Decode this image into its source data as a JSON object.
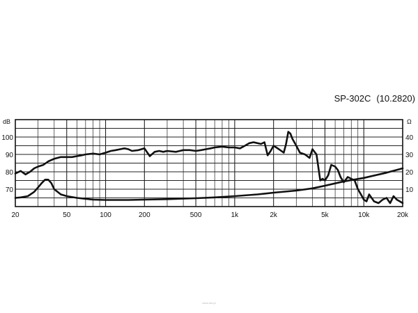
{
  "header": {
    "model": "SP-302C",
    "code": "(10.2820)"
  },
  "watermark": "www.tdd.pl",
  "chart_data": {
    "type": "line",
    "title": "SP-302C (10.2820)",
    "xlabel": "",
    "x_scale": "log",
    "xlim": [
      20,
      20000
    ],
    "x_ticks": [
      20,
      50,
      100,
      200,
      500,
      1000,
      2000,
      5000,
      10000,
      20000
    ],
    "x_tick_labels": [
      "20",
      "50",
      "100",
      "200",
      "500",
      "1k",
      "2k",
      "5k",
      "10k",
      "20k"
    ],
    "y_left": {
      "unit": "dB",
      "ylim": [
        60,
        110
      ],
      "ticks": [
        70,
        80,
        90,
        100
      ],
      "tick_labels": [
        "70",
        "80",
        "90",
        "100"
      ]
    },
    "y_right": {
      "unit": "Ω",
      "ylim": [
        0,
        50
      ],
      "ticks": [
        10,
        20,
        30,
        40
      ],
      "tick_labels": [
        "10",
        "20",
        "30",
        "40"
      ]
    },
    "grid": true,
    "series": [
      {
        "axis": "left",
        "x": [
          20,
          22,
          24,
          26,
          28,
          30,
          33,
          36,
          40,
          45,
          50,
          55,
          60,
          65,
          70,
          80,
          90,
          100,
          110,
          120,
          130,
          140,
          150,
          160,
          180,
          200,
          220,
          240,
          260,
          280,
          300,
          350,
          400,
          450,
          500,
          550,
          600,
          650,
          700,
          800,
          900,
          1000,
          1100,
          1200,
          1300,
          1400,
          1500,
          1600,
          1700,
          1800,
          1900,
          2000,
          2200,
          2400,
          2500,
          2600,
          2700,
          2800,
          3000,
          3200,
          3500,
          3800,
          4000,
          4300,
          4600,
          4800,
          5000,
          5300,
          5600,
          6000,
          6300,
          6600,
          7000,
          7500,
          8000,
          8500,
          9000,
          9500,
          10000,
          10500,
          11000,
          12000,
          13000,
          14000,
          15000,
          16000,
          17000,
          18000,
          19000,
          20000
        ],
        "y": [
          79,
          80.5,
          78.5,
          80,
          82,
          83,
          84,
          86,
          87.5,
          88.5,
          88.5,
          88.5,
          89,
          89.5,
          90,
          90.5,
          90,
          91,
          92,
          92.5,
          93,
          93.5,
          93,
          92,
          92.5,
          93.5,
          89,
          91.5,
          92,
          91.5,
          92,
          91.5,
          92.5,
          92.5,
          92,
          92.5,
          93,
          93.5,
          94,
          94.5,
          94,
          94,
          93.5,
          95,
          96.5,
          97,
          96.5,
          96,
          97,
          89.5,
          92,
          95,
          93,
          91,
          96,
          103,
          102,
          99,
          95,
          91,
          90,
          88,
          93,
          90,
          75,
          76,
          75,
          78,
          84,
          83,
          81,
          77,
          74,
          77,
          76,
          75,
          70,
          67,
          64,
          63,
          67,
          63,
          62,
          64,
          65,
          62,
          66,
          64,
          63,
          62
        ],
        "name": ""
      },
      {
        "axis": "right",
        "x": [
          20,
          22,
          25,
          28,
          30,
          32,
          34,
          36,
          38,
          40,
          45,
          50,
          60,
          70,
          80,
          100,
          150,
          200,
          300,
          500,
          700,
          1000,
          1500,
          2000,
          3000,
          4000,
          5000,
          7000,
          10000,
          15000,
          20000
        ],
        "y": [
          5,
          5.3,
          6,
          8.5,
          11,
          13.5,
          15.5,
          15.5,
          13.5,
          10,
          7,
          6,
          5,
          4.5,
          4,
          3.8,
          3.8,
          4,
          4.3,
          4.8,
          5.3,
          6,
          7,
          8,
          9.2,
          10.5,
          12,
          14.5,
          16.5,
          19.5,
          22
        ],
        "name": ""
      }
    ]
  }
}
